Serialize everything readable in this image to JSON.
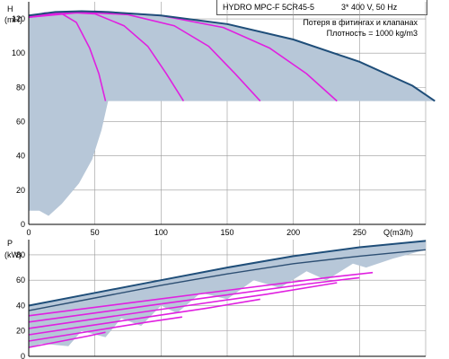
{
  "header": {
    "title": "HYDRO MPC-F 5CR45-5",
    "supply": "3* 400 V, 50 Hz",
    "note_loss": "Потеря в фитингах и клапанах",
    "note_density": "Плотность = 1000 kg/m3"
  },
  "colors": {
    "envelope_fill": "#b7c7d8",
    "max_curve": "#1f4e79",
    "partial_curve": "#e020e0",
    "grid": "#9a9a9a",
    "axis": "#000000"
  },
  "chart_data": [
    {
      "type": "line",
      "name": "head",
      "ylabel_line1": "H",
      "ylabel_line2": "(mH)",
      "xlabel": "Q(m3/h)",
      "xlim": [
        0,
        300
      ],
      "ylim": [
        0,
        130
      ],
      "x_ticks": [
        "0",
        "50",
        "100",
        "150",
        "200",
        "250"
      ],
      "x_tick_values": [
        0,
        50,
        100,
        150,
        200,
        250
      ],
      "y_ticks": [
        "0",
        "20",
        "40",
        "60",
        "80",
        "100",
        "120"
      ],
      "y_tick_values": [
        0,
        20,
        40,
        60,
        80,
        100,
        120
      ],
      "grid": true,
      "envelope": [
        [
          0,
          122
        ],
        [
          20,
          124
        ],
        [
          40,
          124.5
        ],
        [
          60,
          124
        ],
        [
          100,
          122
        ],
        [
          150,
          117
        ],
        [
          200,
          108
        ],
        [
          250,
          95
        ],
        [
          290,
          81
        ],
        [
          307,
          72
        ],
        [
          120,
          72
        ],
        [
          60,
          72
        ],
        [
          55,
          55
        ],
        [
          48,
          38
        ],
        [
          38,
          24
        ],
        [
          25,
          12
        ],
        [
          15,
          5
        ],
        [
          8,
          8
        ],
        [
          0,
          8
        ]
      ],
      "max_curve": [
        [
          0,
          122
        ],
        [
          20,
          124
        ],
        [
          40,
          124.5
        ],
        [
          60,
          124
        ],
        [
          100,
          122
        ],
        [
          150,
          117
        ],
        [
          200,
          108
        ],
        [
          250,
          95
        ],
        [
          290,
          81
        ],
        [
          307,
          72
        ]
      ],
      "partial_curves": [
        [
          [
            0,
            121
          ],
          [
            12,
            123.5
          ],
          [
            24,
            123.5
          ],
          [
            36,
            118
          ],
          [
            46,
            103
          ],
          [
            53,
            88
          ],
          [
            58,
            72
          ]
        ],
        [
          [
            0,
            121
          ],
          [
            25,
            124
          ],
          [
            50,
            123
          ],
          [
            72,
            116
          ],
          [
            90,
            104
          ],
          [
            104,
            88
          ],
          [
            117,
            72
          ]
        ],
        [
          [
            0,
            121
          ],
          [
            37,
            124
          ],
          [
            75,
            122.5
          ],
          [
            110,
            116
          ],
          [
            136,
            104
          ],
          [
            156,
            88
          ],
          [
            175,
            72
          ]
        ],
        [
          [
            0,
            121
          ],
          [
            50,
            124.5
          ],
          [
            100,
            122
          ],
          [
            147,
            115
          ],
          [
            182,
            103
          ],
          [
            210,
            88
          ],
          [
            233,
            72
          ]
        ]
      ]
    },
    {
      "type": "line",
      "name": "power",
      "ylabel_line1": "P",
      "ylabel_line2": "(kW)",
      "xlim": [
        0,
        300
      ],
      "ylim": [
        0,
        92
      ],
      "y_ticks": [
        "0",
        "20",
        "40",
        "60",
        "80"
      ],
      "y_tick_values": [
        0,
        20,
        40,
        60,
        80
      ],
      "grid": true,
      "envelope": [
        [
          0,
          40
        ],
        [
          50,
          50
        ],
        [
          100,
          60
        ],
        [
          150,
          70
        ],
        [
          200,
          79
        ],
        [
          250,
          86
        ],
        [
          300,
          91
        ],
        [
          300,
          84
        ],
        [
          275,
          77
        ],
        [
          255,
          70
        ],
        [
          245,
          73
        ],
        [
          225,
          60
        ],
        [
          210,
          67
        ],
        [
          190,
          54
        ],
        [
          170,
          60
        ],
        [
          150,
          45
        ],
        [
          130,
          50
        ],
        [
          112,
          34
        ],
        [
          100,
          40
        ],
        [
          85,
          24
        ],
        [
          70,
          30
        ],
        [
          58,
          15
        ],
        [
          40,
          20
        ],
        [
          30,
          8
        ],
        [
          10,
          10
        ],
        [
          0,
          7
        ]
      ],
      "max_curve": [
        [
          0,
          40
        ],
        [
          50,
          50
        ],
        [
          100,
          60
        ],
        [
          150,
          70
        ],
        [
          200,
          79
        ],
        [
          250,
          86
        ],
        [
          300,
          91
        ]
      ],
      "second_curve": [
        [
          0,
          36
        ],
        [
          50,
          46
        ],
        [
          100,
          56
        ],
        [
          150,
          65
        ],
        [
          200,
          73
        ],
        [
          250,
          79
        ],
        [
          300,
          84
        ]
      ],
      "partial_curves": [
        [
          [
            0,
            7
          ],
          [
            15,
            10
          ],
          [
            30,
            13
          ],
          [
            45,
            16
          ],
          [
            58,
            19
          ]
        ],
        [
          [
            0,
            12
          ],
          [
            30,
            17
          ],
          [
            60,
            22
          ],
          [
            90,
            27
          ],
          [
            116,
            31
          ]
        ],
        [
          [
            0,
            17
          ],
          [
            45,
            24
          ],
          [
            90,
            31
          ],
          [
            135,
            38
          ],
          [
            175,
            45
          ]
        ],
        [
          [
            0,
            22
          ],
          [
            60,
            31
          ],
          [
            120,
            40
          ],
          [
            180,
            49
          ],
          [
            233,
            58
          ]
        ],
        [
          [
            0,
            27
          ],
          [
            70,
            37
          ],
          [
            140,
            47
          ],
          [
            210,
            57
          ],
          [
            250,
            62
          ]
        ],
        [
          [
            0,
            32
          ],
          [
            75,
            42
          ],
          [
            150,
            52
          ],
          [
            225,
            62
          ],
          [
            260,
            66
          ]
        ]
      ]
    }
  ]
}
